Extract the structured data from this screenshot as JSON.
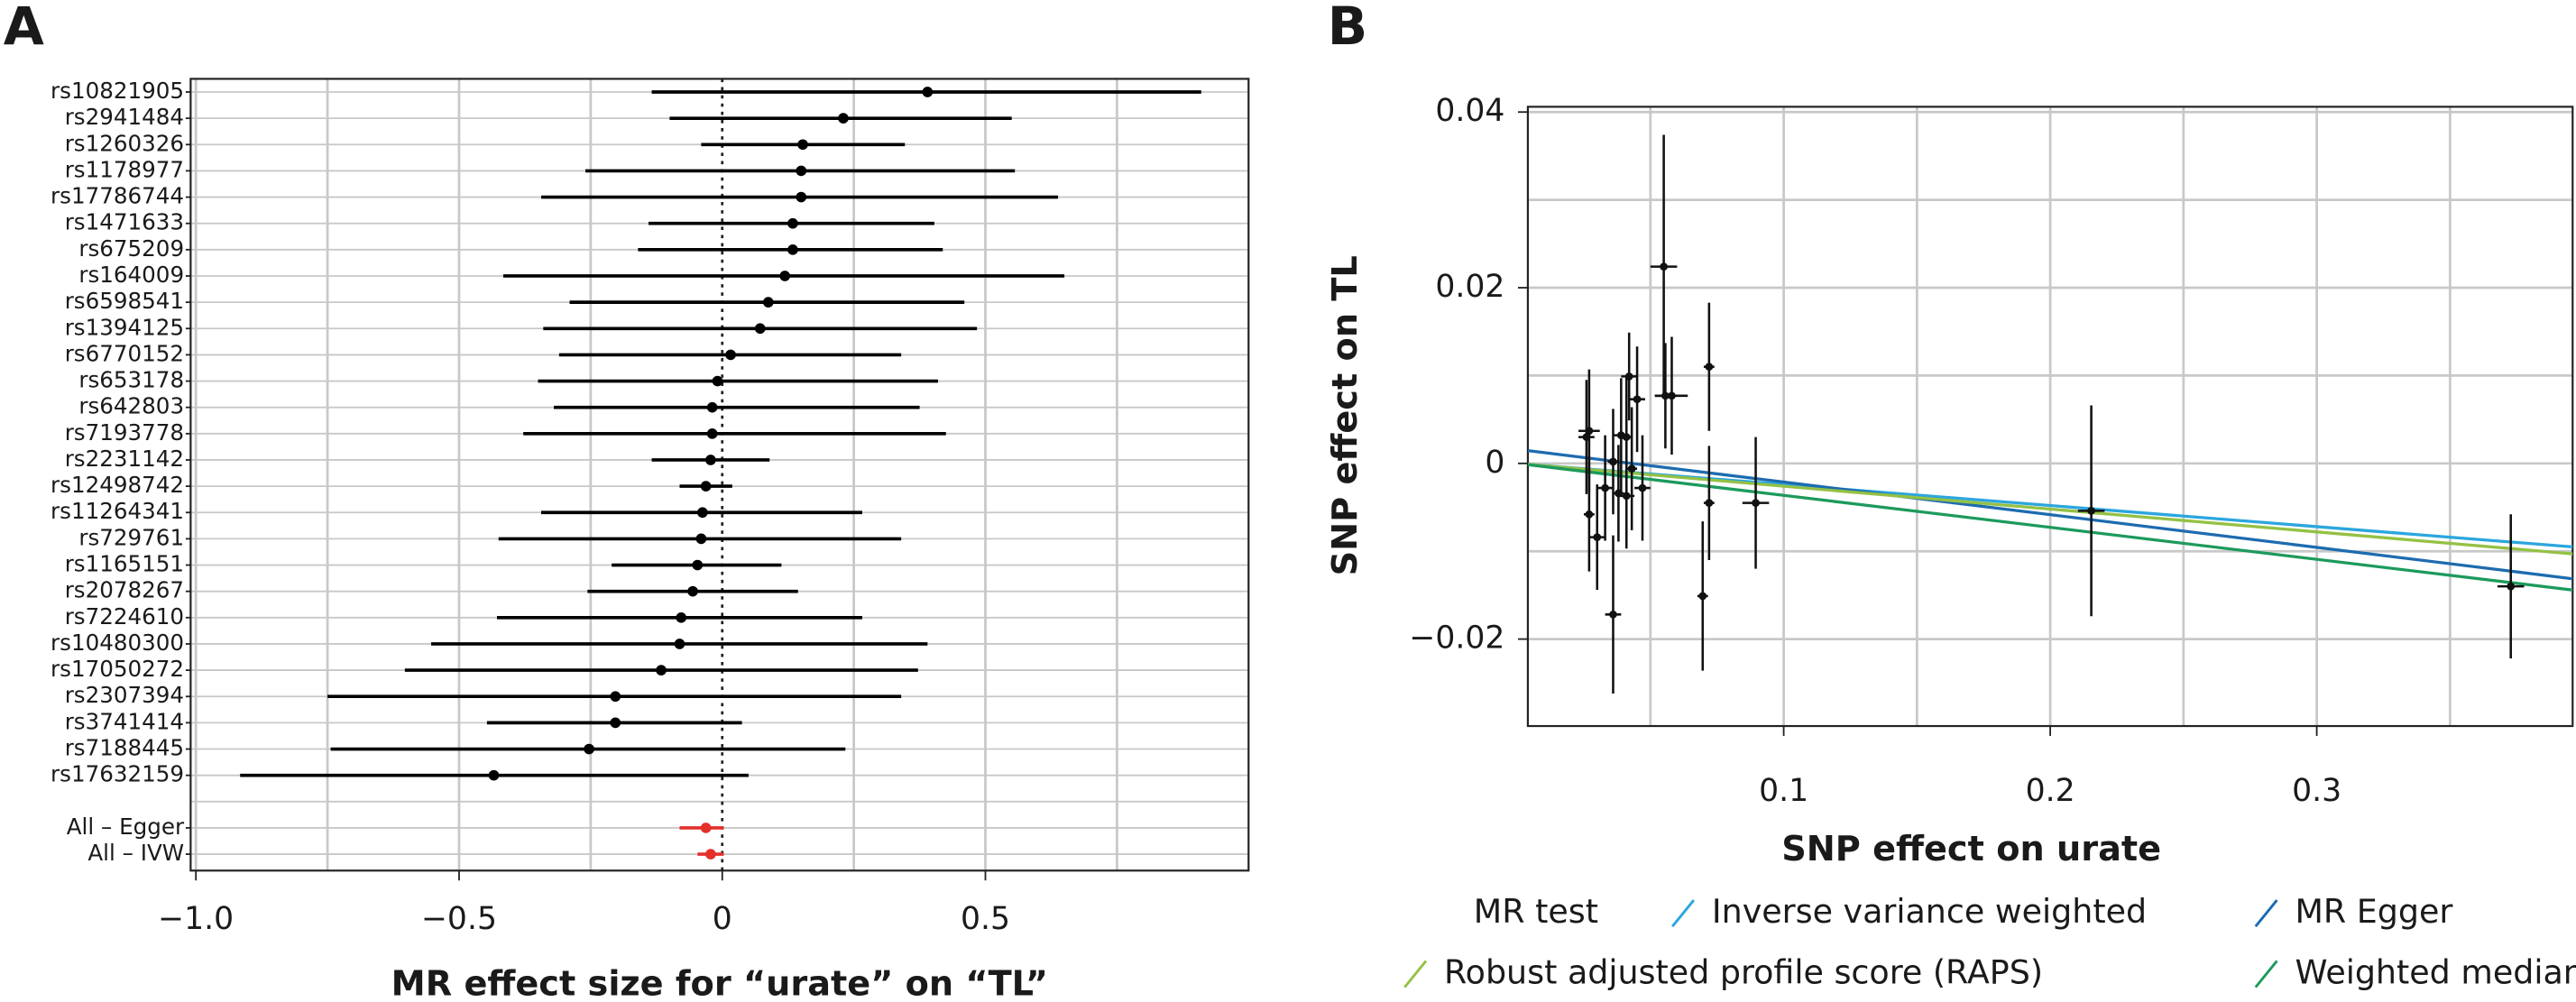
{
  "chart_data": [
    {
      "type": "forest",
      "panel": "A",
      "xlabel": "MR effect size for “urate” on “TL”",
      "categories": [
        "rs10821905",
        "rs2941484",
        "rs1260326",
        "rs1178977",
        "rs17786744",
        "rs1471633",
        "rs675209",
        "rs164009",
        "rs6598541",
        "rs1394125",
        "rs6770152",
        "rs653178",
        "rs642803",
        "rs7193778",
        "rs2231142",
        "rs12498742",
        "rs11264341",
        "rs729761",
        "rs1165151",
        "rs2078267",
        "rs7224610",
        "rs10480300",
        "rs17050272",
        "rs2307394",
        "rs3741414",
        "rs7188445",
        "rs17632159"
      ],
      "values": [
        0.39,
        0.23,
        0.153,
        0.15,
        0.15,
        0.134,
        0.134,
        0.119,
        0.0875,
        0.072,
        0.016,
        -0.009,
        -0.019,
        -0.019,
        -0.022,
        -0.031,
        -0.0375,
        -0.04,
        -0.047,
        -0.056,
        -0.078,
        -0.081,
        -0.116,
        -0.203,
        -0.203,
        -0.253,
        -0.434
      ],
      "lower": [
        -0.134,
        -0.1,
        -0.04,
        -0.26,
        -0.344,
        -0.14,
        -0.16,
        -0.416,
        -0.29,
        -0.34,
        -0.31,
        -0.35,
        -0.32,
        -0.378,
        -0.134,
        -0.081,
        -0.344,
        -0.425,
        -0.21,
        -0.256,
        -0.428,
        -0.553,
        -0.603,
        -0.75,
        -0.447,
        -0.744,
        -0.916
      ],
      "upper": [
        0.91,
        0.55,
        0.347,
        0.556,
        0.638,
        0.403,
        0.419,
        0.65,
        0.46,
        0.484,
        0.34,
        0.41,
        0.375,
        0.425,
        0.09,
        0.019,
        0.266,
        0.34,
        0.1125,
        0.144,
        0.266,
        0.39,
        0.372,
        0.34,
        0.0375,
        0.234,
        0.05
      ],
      "color": "#000000",
      "summary": {
        "categories": [
          "All – Egger",
          "All – IVW"
        ],
        "values": [
          -0.031,
          -0.022
        ],
        "lower": [
          -0.081,
          -0.047
        ],
        "upper": [
          0.003,
          0.003
        ],
        "color": "#e3302b"
      },
      "xlim": [
        -1.01,
        1.0
      ],
      "xticks": [
        {
          "value": -1.0,
          "label": "−1.0"
        },
        {
          "value": -0.5,
          "label": "−0.5"
        },
        0,
        0.5
      ],
      "xgrid": [
        -1.0,
        -0.75,
        -0.5,
        -0.25,
        0.25,
        0.5,
        0.75
      ],
      "refline": 0
    },
    {
      "type": "scatter",
      "panel": "B",
      "xlabel": "SNP effect on urate",
      "ylabel": "SNP effect on TL",
      "x": [
        0.055,
        0.072,
        0.058,
        0.0556,
        0.045,
        0.042,
        0.039,
        0.041,
        0.027,
        0.026,
        0.047,
        0.038,
        0.033,
        0.041,
        0.027,
        0.03,
        0.036,
        0.0696,
        0.072,
        0.0895,
        0.2154,
        0.3728,
        0.036,
        0.043
      ],
      "y": [
        0.0224,
        0.011,
        0.0077,
        0.0077,
        0.0073,
        0.0099,
        0.0032,
        0.003,
        0.0037,
        0.003,
        -0.0028,
        -0.0034,
        -0.0028,
        -0.0037,
        -0.0058,
        -0.0084,
        -0.0172,
        -0.0151,
        -0.0045,
        -0.0045,
        -0.0054,
        -0.014,
        0.0002,
        -0.0006
      ],
      "xerr": [
        0.005,
        0.002,
        0.006,
        0.004,
        0.003,
        0.003,
        0.003,
        0.002,
        0.004,
        0.003,
        0.003,
        0.002,
        0.003,
        0.003,
        0.002,
        0.003,
        0.003,
        0.002,
        0.002,
        0.005,
        0.005,
        0.005,
        0.002,
        0.002
      ],
      "yerr": [
        0.015,
        0.0073,
        0.0067,
        0.006,
        0.006,
        0.005,
        0.0065,
        0.007,
        0.007,
        0.0065,
        0.006,
        0.0055,
        0.006,
        0.006,
        0.0065,
        0.006,
        0.009,
        0.0085,
        0.0065,
        0.0075,
        0.012,
        0.0082,
        0.006,
        0.007
      ],
      "color": "#111111",
      "lines_title": "MR test",
      "lines": [
        {
          "name": "Inverse variance weighted",
          "color": "#2ba6de",
          "slope": -0.024,
          "intercept": 0
        },
        {
          "name": "MR Egger",
          "color": "#1d6bb0",
          "slope": -0.0372,
          "intercept": 0.0016
        },
        {
          "name": "Robust adjusted profile score (RAPS)",
          "color": "#94c144",
          "slope": -0.026,
          "intercept": 0
        },
        {
          "name": "Weighted median",
          "color": "#1c9a5c",
          "slope": -0.0364,
          "intercept": 0
        }
      ],
      "xlim": [
        0.004,
        0.396
      ],
      "ylim": [
        -0.0299,
        0.0406
      ],
      "xticks": [
        0.1,
        0.2,
        0.3
      ],
      "yticks": [
        0.04,
        0.02,
        0,
        {
          "value": -0.02,
          "label": "−0.02"
        }
      ],
      "xgrid": [
        0.05,
        0.1,
        0.15,
        0.2,
        0.25,
        0.3,
        0.35
      ],
      "ygrid": [
        -0.02,
        -0.01,
        0,
        0.01,
        0.02,
        0.03,
        0.04
      ]
    }
  ]
}
